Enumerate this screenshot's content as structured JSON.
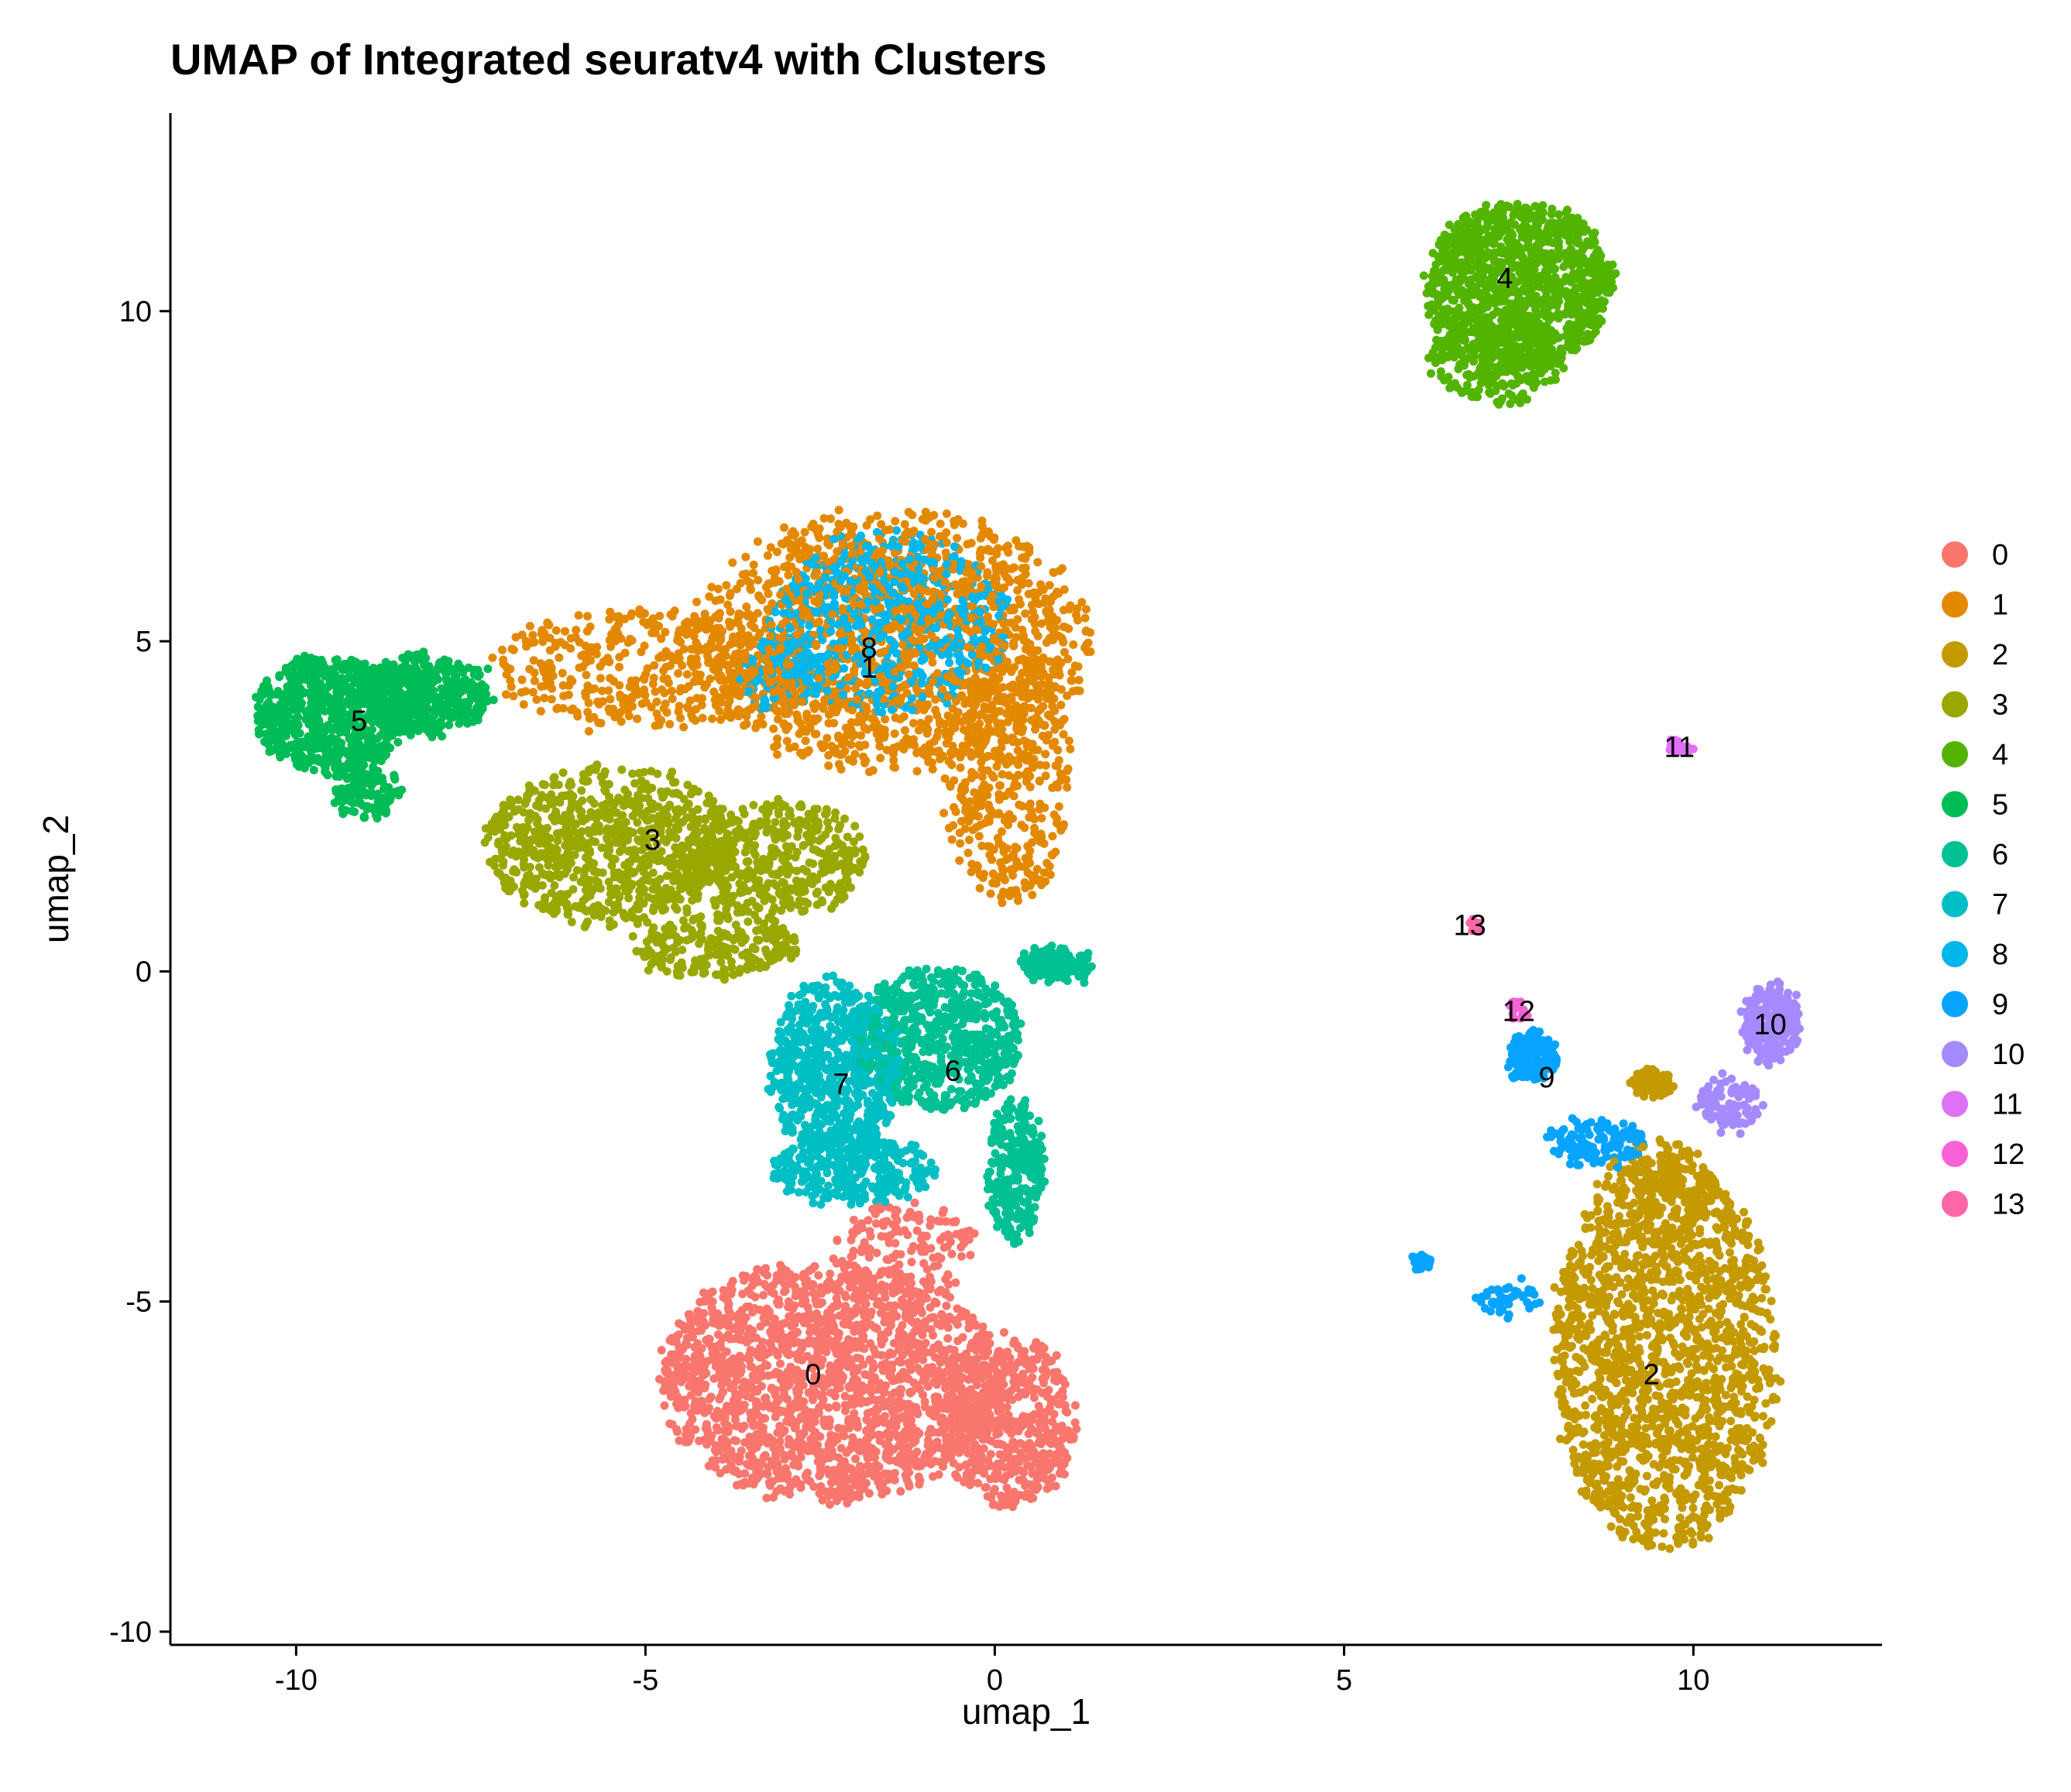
{
  "chart_data": {
    "type": "scatter",
    "title": "UMAP of Integrated seuratv4 with Clusters",
    "xlabel": "umap_1",
    "ylabel": "umap_2",
    "xlim": [
      -11.8,
      12.7
    ],
    "ylim": [
      -10.2,
      13
    ],
    "x_ticks": [
      -10,
      -5,
      0,
      5,
      10
    ],
    "x_tick_labels": [
      "-10",
      "-5",
      "0",
      "5",
      "10"
    ],
    "y_ticks": [
      -10,
      -5,
      0,
      5,
      10
    ],
    "y_tick_labels": [
      "-10",
      "-5",
      "0",
      "5",
      "10"
    ],
    "grid": false,
    "legend_position": "right",
    "series": [
      {
        "name": "0",
        "color": "#F8766D",
        "label": "0",
        "label_pos": [
          -2.6,
          -6.1
        ],
        "points": 2600,
        "blobs": [
          {
            "c": [
              -2.4,
              -6.2
            ],
            "r": [
              2.4,
              1.85
            ],
            "w": 0.72
          },
          {
            "c": [
              0.2,
              -6.8
            ],
            "r": [
              1.0,
              1.3
            ],
            "w": 0.22
          },
          {
            "c": [
              -1.3,
              -4.2
            ],
            "r": [
              1.0,
              0.7
            ],
            "w": 0.06
          }
        ]
      },
      {
        "name": "1",
        "color": "#E38900",
        "label": "1",
        "label_pos": [
          -1.8,
          4.6
        ],
        "points": 2300,
        "blobs": [
          {
            "c": [
              -1.5,
              5.0
            ],
            "r": [
              2.9,
              2.0
            ],
            "w": 0.65
          },
          {
            "c": [
              0.2,
              3.0
            ],
            "r": [
              0.9,
              2.0
            ],
            "w": 0.18
          },
          {
            "c": [
              -5.0,
              4.6
            ],
            "r": [
              2.2,
              0.9
            ],
            "w": 0.17
          }
        ]
      },
      {
        "name": "2",
        "color": "#C49A00",
        "label": "2",
        "label_pos": [
          9.4,
          -6.1
        ],
        "points": 1900,
        "blobs": [
          {
            "c": [
              9.6,
              -5.8
            ],
            "r": [
              1.6,
              3.0
            ],
            "w": 0.88
          },
          {
            "c": [
              9.5,
              -3.3
            ],
            "r": [
              0.8,
              0.8
            ],
            "w": 0.08
          },
          {
            "c": [
              9.4,
              -1.7
            ],
            "r": [
              0.3,
              0.2
            ],
            "w": 0.04
          }
        ]
      },
      {
        "name": "3",
        "color": "#99A800",
        "label": "3",
        "label_pos": [
          -4.9,
          2.0
        ],
        "points": 1500,
        "blobs": [
          {
            "c": [
              -5.5,
              1.9
            ],
            "r": [
              1.8,
              1.2
            ],
            "w": 0.55
          },
          {
            "c": [
              -3.2,
              1.7
            ],
            "r": [
              1.4,
              0.9
            ],
            "w": 0.3
          },
          {
            "c": [
              -4.0,
              0.4
            ],
            "r": [
              1.2,
              0.5
            ],
            "w": 0.15
          }
        ]
      },
      {
        "name": "4",
        "color": "#53B400",
        "label": "4",
        "label_pos": [
          7.3,
          10.5
        ],
        "points": 1400,
        "blobs": [
          {
            "c": [
              7.5,
              10.4
            ],
            "r": [
              1.35,
              1.25
            ],
            "w": 0.8
          },
          {
            "c": [
              7.2,
              9.3
            ],
            "r": [
              1.0,
              0.7
            ],
            "w": 0.2
          }
        ]
      },
      {
        "name": "5",
        "color": "#00BC56",
        "label": "5",
        "label_pos": [
          -9.1,
          3.8
        ],
        "points": 1300,
        "blobs": [
          {
            "c": [
              -9.5,
              3.9
            ],
            "r": [
              1.1,
              0.9
            ],
            "w": 0.55
          },
          {
            "c": [
              -8.2,
              4.2
            ],
            "r": [
              1.0,
              0.6
            ],
            "w": 0.35
          },
          {
            "c": [
              -9.0,
              2.7
            ],
            "r": [
              0.5,
              0.4
            ],
            "w": 0.1
          }
        ]
      },
      {
        "name": "6",
        "color": "#00C094",
        "label": "6",
        "label_pos": [
          -0.6,
          -1.5
        ],
        "points": 1100,
        "blobs": [
          {
            "c": [
              -0.8,
              -1.0
            ],
            "r": [
              1.2,
              1.1
            ],
            "w": 0.6
          },
          {
            "c": [
              0.3,
              -3.0
            ],
            "r": [
              0.4,
              1.1
            ],
            "w": 0.25
          },
          {
            "c": [
              0.9,
              0.1
            ],
            "r": [
              0.5,
              0.25
            ],
            "w": 0.15
          }
        ]
      },
      {
        "name": "7",
        "color": "#00BFC4",
        "label": "7",
        "label_pos": [
          -2.2,
          -1.7
        ],
        "points": 1000,
        "blobs": [
          {
            "c": [
              -2.3,
              -1.5
            ],
            "r": [
              0.9,
              1.4
            ],
            "w": 0.7
          },
          {
            "c": [
              -2.0,
              -3.0
            ],
            "r": [
              1.2,
              0.5
            ],
            "w": 0.3
          }
        ]
      },
      {
        "name": "8",
        "color": "#00B6EB",
        "label": "8",
        "label_pos": [
          -1.8,
          4.9
        ],
        "points": 800,
        "blobs": [
          {
            "c": [
              -1.5,
              5.3
            ],
            "r": [
              1.7,
              1.4
            ],
            "w": 0.85
          },
          {
            "c": [
              -3.1,
              4.5
            ],
            "r": [
              0.6,
              0.6
            ],
            "w": 0.15
          }
        ]
      },
      {
        "name": "9",
        "color": "#06A4FF",
        "label": "9",
        "label_pos": [
          7.9,
          -1.6
        ],
        "points": 380,
        "blobs": [
          {
            "c": [
              7.7,
              -1.3
            ],
            "r": [
              0.35,
              0.35
            ],
            "w": 0.45
          },
          {
            "c": [
              8.6,
              -2.6
            ],
            "r": [
              0.7,
              0.35
            ],
            "w": 0.35
          },
          {
            "c": [
              7.4,
              -5.0
            ],
            "r": [
              0.5,
              0.25
            ],
            "w": 0.12
          },
          {
            "c": [
              6.1,
              -4.4
            ],
            "r": [
              0.15,
              0.1
            ],
            "w": 0.08
          }
        ]
      },
      {
        "name": "10",
        "color": "#A58AFF",
        "label": "10",
        "label_pos": [
          11.1,
          -0.8
        ],
        "points": 320,
        "blobs": [
          {
            "c": [
              11.1,
              -0.8
            ],
            "r": [
              0.4,
              0.6
            ],
            "w": 0.7
          },
          {
            "c": [
              10.5,
              -2.0
            ],
            "r": [
              0.45,
              0.4
            ],
            "w": 0.3
          }
        ]
      },
      {
        "name": "11",
        "color": "#DF70F8",
        "label": "11",
        "label_pos": [
          9.8,
          3.4
        ],
        "points": 24,
        "blobs": [
          {
            "c": [
              9.8,
              3.4
            ],
            "r": [
              0.15,
              0.12
            ],
            "w": 1.0
          }
        ]
      },
      {
        "name": "12",
        "color": "#FB61D7",
        "label": "12",
        "label_pos": [
          7.5,
          -0.6
        ],
        "points": 14,
        "blobs": [
          {
            "c": [
              7.5,
              -0.6
            ],
            "r": [
              0.18,
              0.15
            ],
            "w": 1.0
          }
        ]
      },
      {
        "name": "13",
        "color": "#FF66A8",
        "label": "13",
        "label_pos": [
          6.8,
          0.7
        ],
        "points": 8,
        "blobs": [
          {
            "c": [
              6.9,
              0.7
            ],
            "r": [
              0.12,
              0.1
            ],
            "w": 1.0
          }
        ]
      }
    ]
  }
}
